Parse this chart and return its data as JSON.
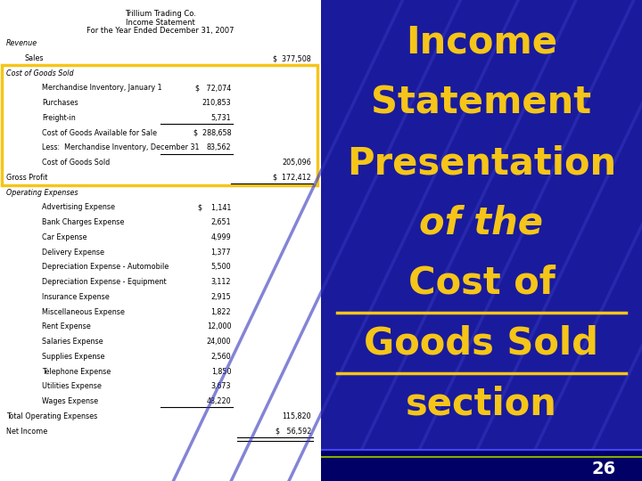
{
  "title_company": "Trillium Trading Co.",
  "title_stmt": "Income Statement",
  "title_period": "For the Year Ended December 31, 2007",
  "bg_right": "#1a1a9c",
  "right_title_lines": [
    "Income",
    "Statement",
    "Presentation",
    "of the",
    "Cost of",
    "Goods Sold",
    "section"
  ],
  "right_title_italic": [
    "of the"
  ],
  "right_title_underline": [
    "Cost of",
    "Goods Sold"
  ],
  "right_title_color": "#f5c518",
  "highlight_box_color": "#f5c518",
  "slide_number": "26",
  "diag_lines_color": "#2a2aaa",
  "lines": [
    {
      "text": "Revenue",
      "indent": 0,
      "style": "italic",
      "col1": "",
      "col2": ""
    },
    {
      "text": "Sales",
      "indent": 1,
      "style": "normal",
      "col1": "",
      "col2": "$  377,508"
    },
    {
      "text": "Cost of Goods Sold",
      "indent": 0,
      "style": "italic",
      "col1": "",
      "col2": "",
      "highlight": true
    },
    {
      "text": "Merchandise Inventory, January 1",
      "indent": 2,
      "style": "normal",
      "col1": "$   72,074",
      "col2": "",
      "highlight": true
    },
    {
      "text": "Purchases",
      "indent": 2,
      "style": "normal",
      "col1": "210,853",
      "col2": "",
      "highlight": true
    },
    {
      "text": "Freight-in",
      "indent": 2,
      "style": "normal",
      "col1": "5,731",
      "col2": "",
      "highlight": true,
      "underline_col1": true
    },
    {
      "text": "Cost of Goods Available for Sale",
      "indent": 2,
      "style": "normal",
      "col1": "$  288,658",
      "col2": "",
      "highlight": true
    },
    {
      "text": "Less:  Merchandise Inventory, December 31",
      "indent": 2,
      "style": "normal",
      "col1": "83,562",
      "col2": "",
      "highlight": true,
      "underline_col1": true
    },
    {
      "text": "Cost of Goods Sold",
      "indent": 2,
      "style": "normal",
      "col1": "",
      "col2": "205,096",
      "highlight": true
    },
    {
      "text": "Gross Profit",
      "indent": 0,
      "style": "normal",
      "col1": "",
      "col2": "$  172,412",
      "highlight": true,
      "underline_col2": true
    },
    {
      "text": "Operating Expenses",
      "indent": 0,
      "style": "italic",
      "col1": "",
      "col2": ""
    },
    {
      "text": "Advertising Expense",
      "indent": 2,
      "style": "normal",
      "col1": "$    1,141",
      "col2": ""
    },
    {
      "text": "Bank Charges Expense",
      "indent": 2,
      "style": "normal",
      "col1": "2,651",
      "col2": ""
    },
    {
      "text": "Car Expense",
      "indent": 2,
      "style": "normal",
      "col1": "4,999",
      "col2": ""
    },
    {
      "text": "Delivery Expense",
      "indent": 2,
      "style": "normal",
      "col1": "1,377",
      "col2": ""
    },
    {
      "text": "Depreciation Expense - Automobile",
      "indent": 2,
      "style": "normal",
      "col1": "5,500",
      "col2": ""
    },
    {
      "text": "Depreciation Expense - Equipment",
      "indent": 2,
      "style": "normal",
      "col1": "3,112",
      "col2": ""
    },
    {
      "text": "Insurance Expense",
      "indent": 2,
      "style": "normal",
      "col1": "2,915",
      "col2": ""
    },
    {
      "text": "Miscellaneous Expense",
      "indent": 2,
      "style": "normal",
      "col1": "1,822",
      "col2": ""
    },
    {
      "text": "Rent Expense",
      "indent": 2,
      "style": "normal",
      "col1": "12,000",
      "col2": ""
    },
    {
      "text": "Salaries Expense",
      "indent": 2,
      "style": "normal",
      "col1": "24,000",
      "col2": ""
    },
    {
      "text": "Supplies Expense",
      "indent": 2,
      "style": "normal",
      "col1": "2,560",
      "col2": ""
    },
    {
      "text": "Telephone Expense",
      "indent": 2,
      "style": "normal",
      "col1": "1,850",
      "col2": ""
    },
    {
      "text": "Utilities Expense",
      "indent": 2,
      "style": "normal",
      "col1": "3,673",
      "col2": ""
    },
    {
      "text": "Wages Expense",
      "indent": 2,
      "style": "normal",
      "col1": "48,220",
      "col2": "",
      "underline_col1": true
    },
    {
      "text": "Total Operating Expenses",
      "indent": 0,
      "style": "normal",
      "col1": "",
      "col2": "115,820"
    },
    {
      "text": "Net Income",
      "indent": 0,
      "style": "normal",
      "col1": "",
      "col2": "$   56,592",
      "double_underline": true
    }
  ]
}
